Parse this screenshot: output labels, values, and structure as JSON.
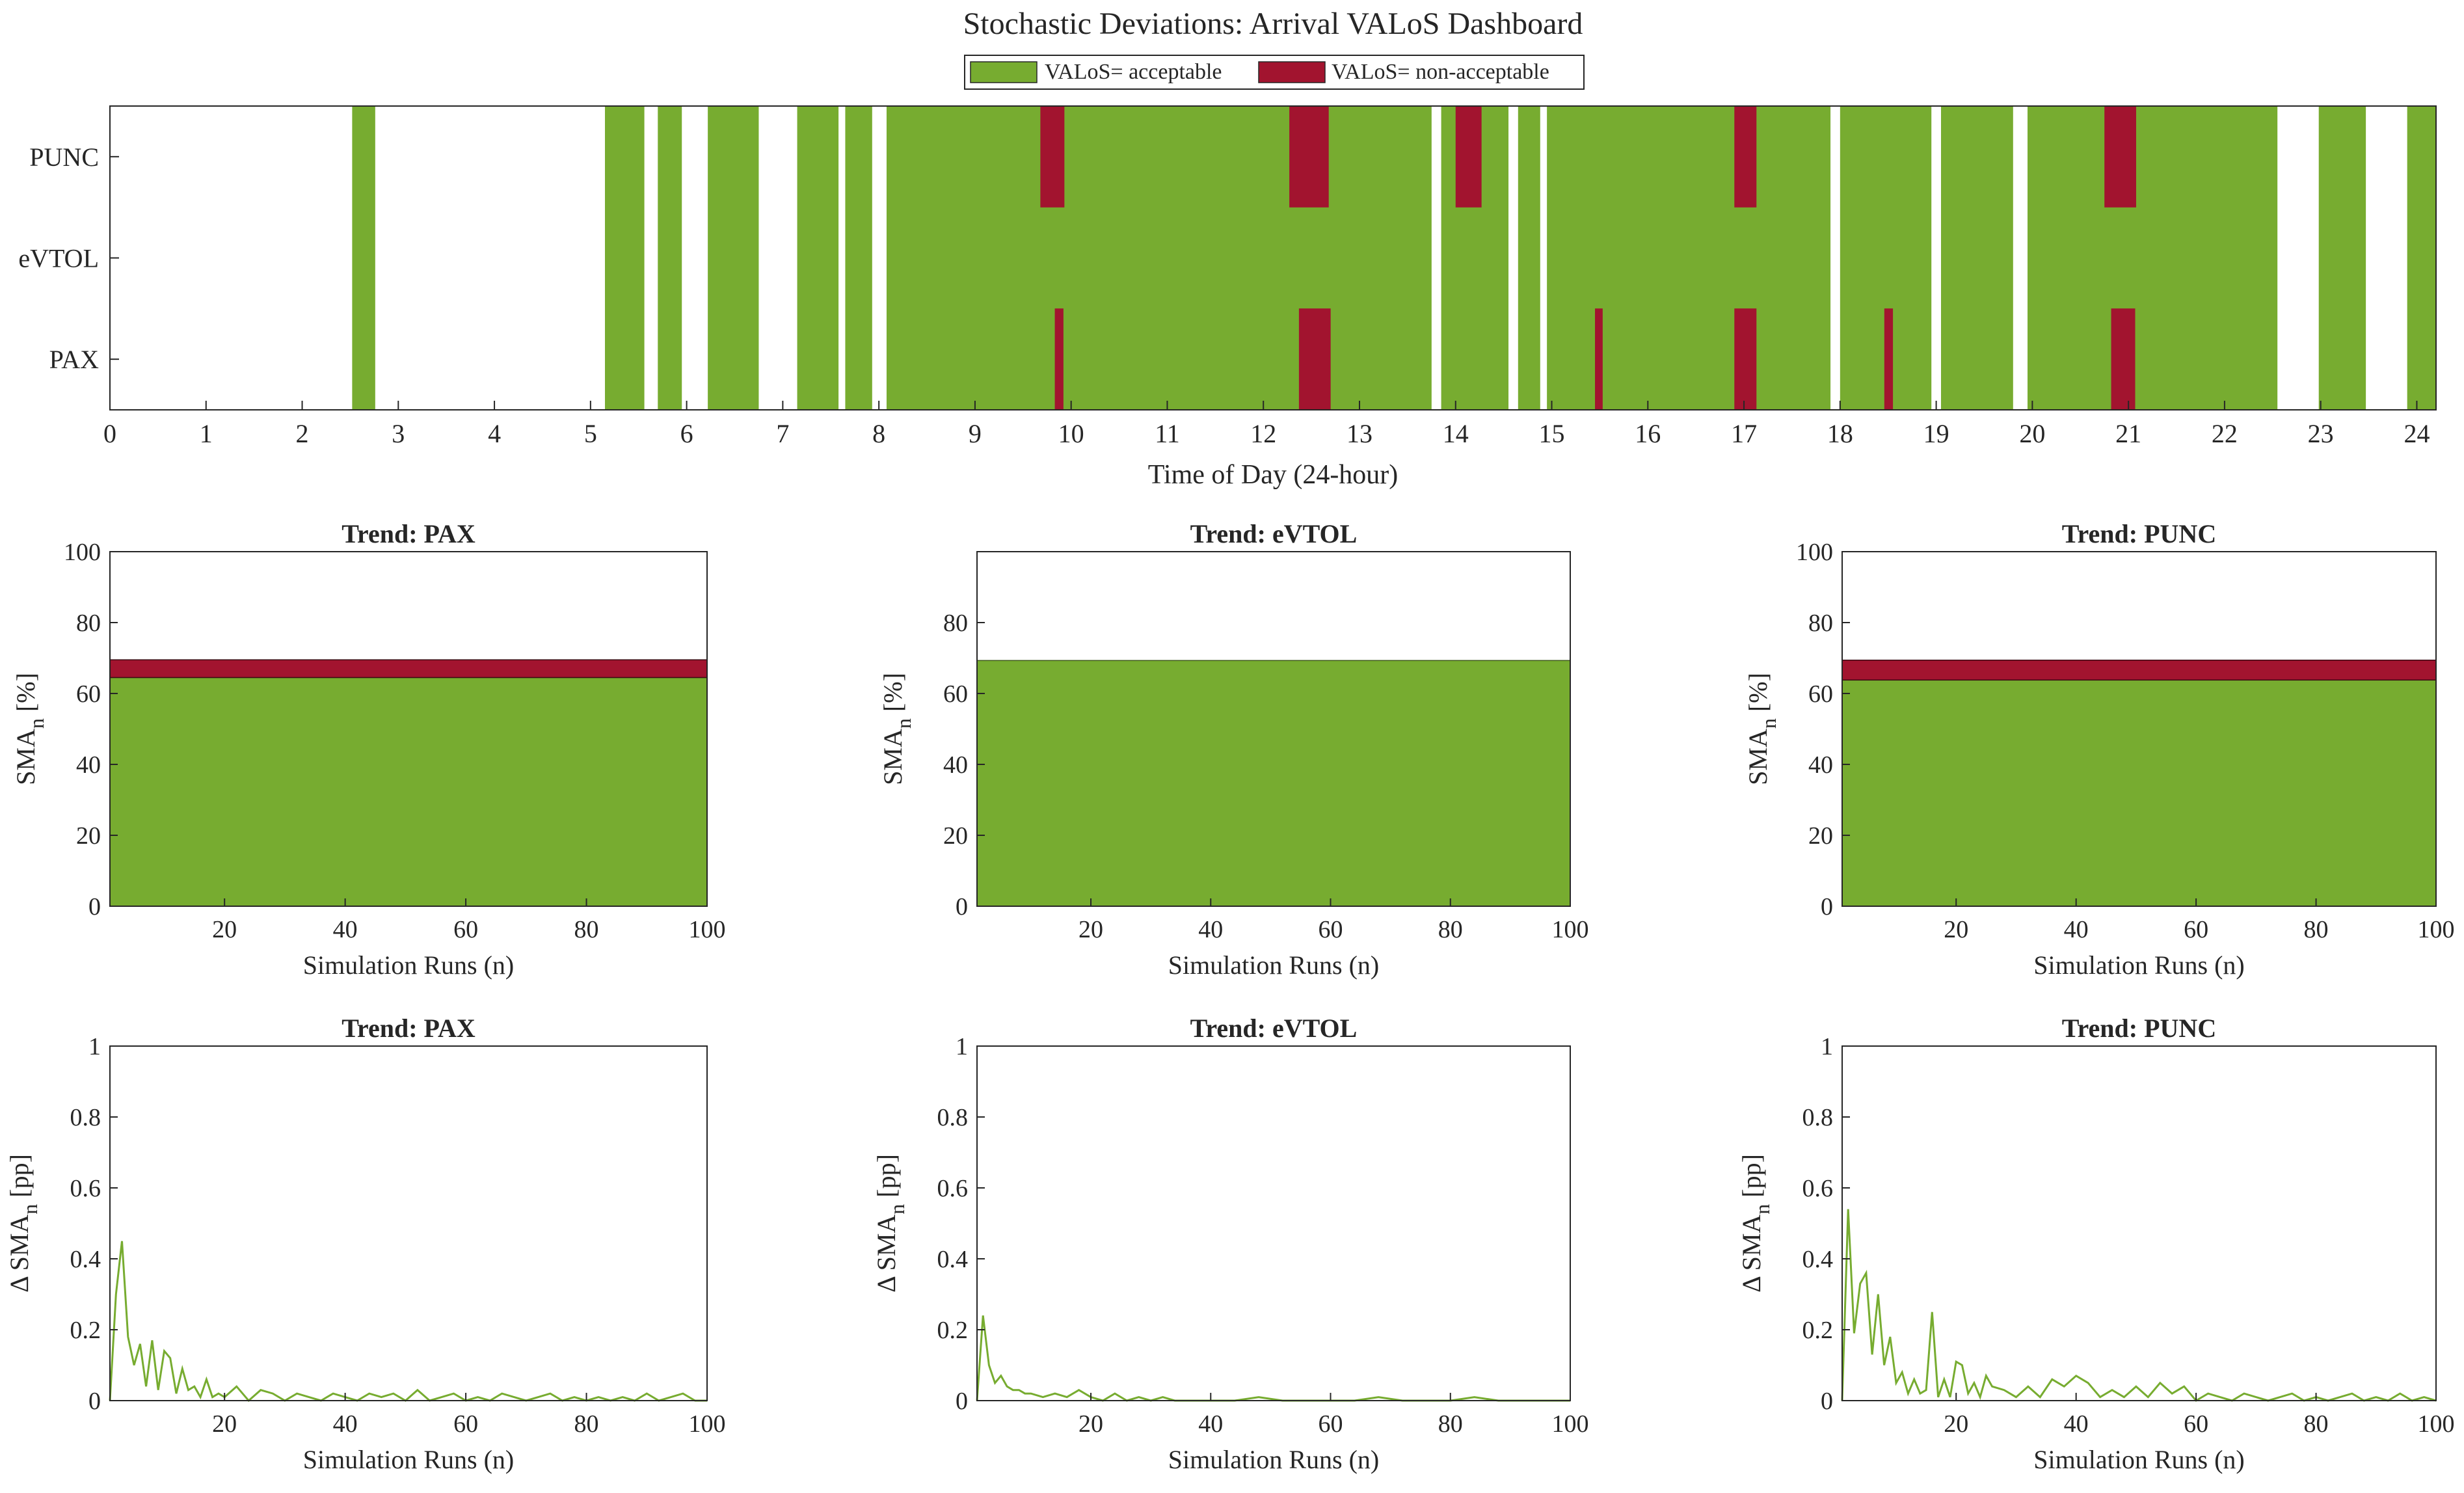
{
  "chart_data": [
    {
      "id": "timeline",
      "type": "timeline",
      "title": "Stochastic Deviations: Arrival VALoS Dashboard",
      "xlabel": "Time of Day (24-hour)",
      "xlim": [
        0,
        24.2
      ],
      "xticks": [
        0,
        1,
        2,
        3,
        4,
        5,
        6,
        7,
        8,
        9,
        10,
        11,
        12,
        13,
        14,
        15,
        16,
        17,
        18,
        19,
        20,
        21,
        22,
        23,
        24
      ],
      "rows": [
        "PUNC",
        "eVTOL",
        "PAX"
      ],
      "legend": {
        "acceptable": "VALoS= acceptable",
        "non_acceptable": "VALoS= non-acceptable"
      },
      "colors": {
        "acceptable": "#77AC30",
        "non_acceptable": "#A2142F"
      },
      "acceptable_segments": [
        [
          2.52,
          2.76
        ],
        [
          5.15,
          5.56
        ],
        [
          5.7,
          5.95
        ],
        [
          6.22,
          6.75
        ],
        [
          7.15,
          7.58
        ],
        [
          7.65,
          7.93
        ],
        [
          8.08,
          13.75
        ],
        [
          13.85,
          14.55
        ],
        [
          14.65,
          14.88
        ],
        [
          14.95,
          17.9
        ],
        [
          18.0,
          18.95
        ],
        [
          19.05,
          19.8
        ],
        [
          19.95,
          22.55
        ],
        [
          22.98,
          23.47
        ],
        [
          23.9,
          24.2
        ]
      ],
      "non_acceptable": {
        "PUNC": [
          [
            9.68,
            9.93
          ],
          [
            12.27,
            12.68
          ],
          [
            14.0,
            14.27
          ],
          [
            16.9,
            17.13
          ],
          [
            20.75,
            21.08
          ]
        ],
        "eVTOL": [],
        "PAX": [
          [
            9.83,
            9.92
          ],
          [
            12.37,
            12.7
          ],
          [
            15.45,
            15.53
          ],
          [
            16.9,
            17.13
          ],
          [
            18.46,
            18.55
          ],
          [
            20.82,
            21.07
          ]
        ]
      }
    },
    {
      "id": "sma-pax",
      "type": "area",
      "title": "Trend: PAX",
      "xlabel": "Simulation Runs (n)",
      "ylabel": "SMA_n [%]",
      "xlim": [
        1,
        100
      ],
      "ylim": [
        0,
        100
      ],
      "xticks": [
        20,
        40,
        60,
        80,
        100
      ],
      "yticks": [
        0,
        20,
        40,
        60,
        80,
        100
      ],
      "series": [
        {
          "name": "VALoS= acceptable",
          "value": 64.5
        },
        {
          "name": "VALoS= non-acceptable",
          "value": 5.0
        }
      ]
    },
    {
      "id": "sma-evtol",
      "type": "area",
      "title": "Trend: eVTOL",
      "xlabel": "Simulation Runs (n)",
      "ylabel": "SMA_n [%]",
      "xlim": [
        1,
        100
      ],
      "ylim": [
        0,
        100
      ],
      "xticks": [
        20,
        40,
        60,
        80,
        100
      ],
      "yticks": [
        0,
        20,
        40,
        60,
        80
      ],
      "series": [
        {
          "name": "VALoS= acceptable",
          "value": 69.3
        },
        {
          "name": "VALoS= non-acceptable",
          "value": 0.0
        }
      ]
    },
    {
      "id": "sma-punc",
      "type": "area",
      "title": "Trend: PUNC",
      "xlabel": "Simulation Runs (n)",
      "ylabel": "SMA_n [%]",
      "xlim": [
        1,
        100
      ],
      "ylim": [
        0,
        100
      ],
      "xticks": [
        20,
        40,
        60,
        80,
        100
      ],
      "yticks": [
        0,
        20,
        40,
        60,
        80,
        100
      ],
      "series": [
        {
          "name": "VALoS= acceptable",
          "value": 63.8
        },
        {
          "name": "VALoS= non-acceptable",
          "value": 5.6
        }
      ]
    },
    {
      "id": "delta-pax",
      "type": "line",
      "title": "Trend: PAX",
      "xlabel": "Simulation Runs (n)",
      "ylabel": "Δ SMA_n [pp]",
      "xlim": [
        1,
        100
      ],
      "ylim": [
        0,
        1
      ],
      "xticks": [
        20,
        40,
        60,
        80,
        100
      ],
      "yticks": [
        0,
        0.2,
        0.4,
        0.6,
        0.8,
        1
      ],
      "x": [
        1,
        2,
        3,
        4,
        5,
        6,
        7,
        8,
        9,
        10,
        11,
        12,
        13,
        14,
        15,
        16,
        17,
        18,
        19,
        20,
        22,
        24,
        26,
        28,
        30,
        32,
        34,
        36,
        38,
        40,
        42,
        44,
        46,
        48,
        50,
        52,
        54,
        56,
        58,
        60,
        62,
        64,
        66,
        68,
        70,
        72,
        74,
        76,
        78,
        80,
        82,
        84,
        86,
        88,
        90,
        92,
        94,
        96,
        98,
        100
      ],
      "y": [
        0,
        0.3,
        0.45,
        0.18,
        0.1,
        0.16,
        0.04,
        0.17,
        0.03,
        0.14,
        0.12,
        0.02,
        0.09,
        0.03,
        0.04,
        0.01,
        0.06,
        0.01,
        0.02,
        0.01,
        0.04,
        0.0,
        0.03,
        0.02,
        0.0,
        0.02,
        0.01,
        0.0,
        0.02,
        0.01,
        0.0,
        0.02,
        0.01,
        0.02,
        0.0,
        0.03,
        0.0,
        0.01,
        0.02,
        0.0,
        0.01,
        0.0,
        0.02,
        0.01,
        0.0,
        0.01,
        0.02,
        0.0,
        0.01,
        0.0,
        0.01,
        0.0,
        0.01,
        0.0,
        0.02,
        0.0,
        0.01,
        0.02,
        0.0,
        0.0
      ],
      "color": "#77AC30"
    },
    {
      "id": "delta-evtol",
      "type": "line",
      "title": "Trend: eVTOL",
      "xlabel": "Simulation Runs (n)",
      "ylabel": "Δ SMA_n [pp]",
      "xlim": [
        1,
        100
      ],
      "ylim": [
        0,
        1
      ],
      "xticks": [
        20,
        40,
        60,
        80,
        100
      ],
      "yticks": [
        0,
        0.2,
        0.4,
        0.6,
        0.8,
        1
      ],
      "x": [
        1,
        2,
        3,
        4,
        5,
        6,
        7,
        8,
        9,
        10,
        12,
        14,
        16,
        18,
        20,
        22,
        24,
        26,
        28,
        30,
        32,
        34,
        36,
        38,
        40,
        44,
        48,
        52,
        56,
        60,
        64,
        68,
        72,
        76,
        80,
        84,
        88,
        92,
        96,
        100
      ],
      "y": [
        0,
        0.24,
        0.1,
        0.05,
        0.07,
        0.04,
        0.03,
        0.03,
        0.02,
        0.02,
        0.01,
        0.02,
        0.01,
        0.03,
        0.01,
        0.0,
        0.02,
        0.0,
        0.01,
        0.0,
        0.01,
        0.0,
        0.0,
        0.0,
        0.0,
        0.0,
        0.01,
        0.0,
        0.0,
        0.0,
        0.0,
        0.01,
        0.0,
        0.0,
        0.0,
        0.01,
        0.0,
        0.0,
        0.0,
        0.0
      ],
      "color": "#77AC30"
    },
    {
      "id": "delta-punc",
      "type": "line",
      "title": "Trend: PUNC",
      "xlabel": "Simulation Runs (n)",
      "ylabel": "Δ SMA_n [pp]",
      "xlim": [
        1,
        100
      ],
      "ylim": [
        0,
        1
      ],
      "xticks": [
        20,
        40,
        60,
        80,
        100
      ],
      "yticks": [
        0,
        0.2,
        0.4,
        0.6,
        0.8,
        1
      ],
      "x": [
        1,
        2,
        3,
        4,
        5,
        6,
        7,
        8,
        9,
        10,
        11,
        12,
        13,
        14,
        15,
        16,
        17,
        18,
        19,
        20,
        21,
        22,
        23,
        24,
        25,
        26,
        28,
        30,
        32,
        34,
        36,
        38,
        40,
        42,
        44,
        46,
        48,
        50,
        52,
        54,
        56,
        58,
        60,
        62,
        64,
        66,
        68,
        70,
        72,
        74,
        76,
        78,
        80,
        82,
        84,
        86,
        88,
        90,
        92,
        94,
        96,
        98,
        100
      ],
      "y": [
        0,
        0.54,
        0.19,
        0.33,
        0.36,
        0.13,
        0.3,
        0.1,
        0.18,
        0.05,
        0.08,
        0.02,
        0.06,
        0.02,
        0.03,
        0.25,
        0.01,
        0.06,
        0.01,
        0.11,
        0.1,
        0.02,
        0.05,
        0.01,
        0.07,
        0.04,
        0.03,
        0.01,
        0.04,
        0.01,
        0.06,
        0.04,
        0.07,
        0.05,
        0.01,
        0.03,
        0.01,
        0.04,
        0.01,
        0.05,
        0.02,
        0.04,
        0.0,
        0.02,
        0.01,
        0.0,
        0.02,
        0.01,
        0.0,
        0.01,
        0.02,
        0.0,
        0.01,
        0.0,
        0.01,
        0.02,
        0.0,
        0.01,
        0.0,
        0.02,
        0.0,
        0.01,
        0.0
      ],
      "color": "#77AC30"
    }
  ]
}
